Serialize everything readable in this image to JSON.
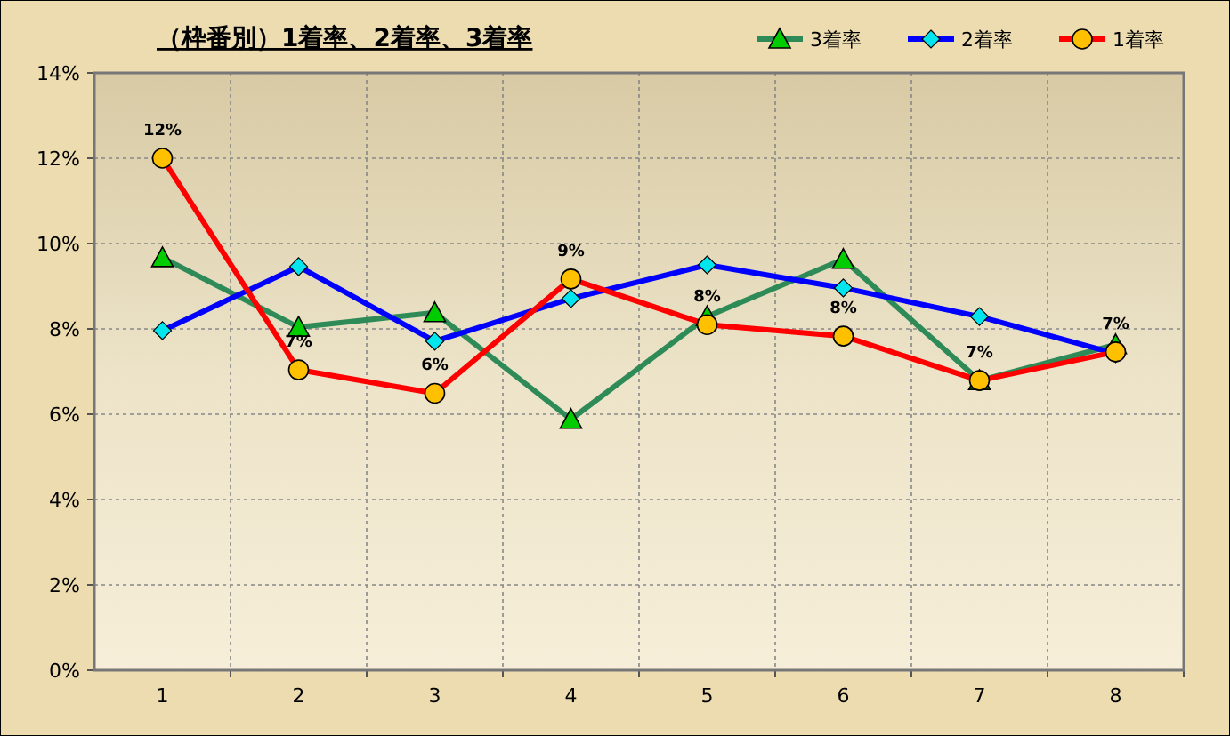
{
  "chart_data": {
    "type": "line",
    "title": "（枠番別）1着率、2着率、3着率",
    "categories": [
      "1",
      "2",
      "3",
      "4",
      "5",
      "6",
      "7",
      "8"
    ],
    "series": [
      {
        "name": "3着率",
        "color": "#2e8b57",
        "marker": "triangle",
        "values": [
          9.67,
          8.04,
          8.38,
          5.88,
          8.29,
          9.63,
          6.79,
          7.63
        ]
      },
      {
        "name": "2着率",
        "color": "#0000ff",
        "marker": "diamond",
        "values": [
          7.96,
          9.46,
          7.71,
          8.71,
          9.5,
          8.96,
          8.29,
          7.42
        ]
      },
      {
        "name": "1着率",
        "color": "#ff0000",
        "marker": "circle",
        "values": [
          12.0,
          7.04,
          6.49,
          9.17,
          8.1,
          7.83,
          6.79,
          7.46
        ],
        "value_labels": [
          "12%",
          "7%",
          "6%",
          "9%",
          "8%",
          "8%",
          "7%",
          "7%"
        ]
      }
    ],
    "ylim": [
      0,
      14
    ],
    "yticks": [
      {
        "value": 0,
        "label": "0%"
      },
      {
        "value": 2,
        "label": "2%"
      },
      {
        "value": 4,
        "label": "4%"
      },
      {
        "value": 6,
        "label": "6%"
      },
      {
        "value": 8,
        "label": "8%"
      },
      {
        "value": 10,
        "label": "10%"
      },
      {
        "value": 12,
        "label": "12%"
      },
      {
        "value": 14,
        "label": "14%"
      }
    ],
    "grid": true,
    "legend": "top right",
    "line_style": "solid"
  }
}
